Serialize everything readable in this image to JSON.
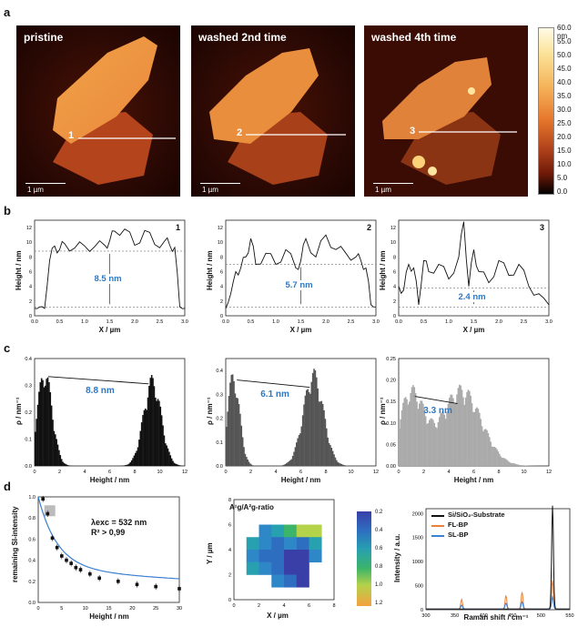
{
  "panels": {
    "a": "a",
    "b": "b",
    "c": "c",
    "d": "d"
  },
  "afm": [
    {
      "title": "pristine",
      "line_index": "1",
      "scale": "1 µm"
    },
    {
      "title": "washed 2nd time",
      "line_index": "2",
      "scale": "1 µm"
    },
    {
      "title": "washed 4th time",
      "line_index": "3",
      "scale": "1 µm"
    }
  ],
  "colorbar": {
    "ticks": [
      "60.0 nm",
      "55.0",
      "50.0",
      "45.0",
      "40.0",
      "35.0",
      "30.0",
      "25.0",
      "20.0",
      "15.0",
      "10.0",
      "5.0",
      "0.0"
    ]
  },
  "profiles": {
    "xlabel": "X / µm",
    "ylabel": "Height / nm",
    "items": [
      {
        "index": "1",
        "annotation": "8.5 nm"
      },
      {
        "index": "2",
        "annotation": "5.7 nm"
      },
      {
        "index": "3",
        "annotation": "2.4 nm"
      }
    ]
  },
  "histograms": {
    "xlabel": "Height / nm",
    "ylabel": "ρ / nm⁻¹",
    "items": [
      {
        "annotation": "8.8 nm"
      },
      {
        "annotation": "6.1 nm"
      },
      {
        "annotation": "3.3 nm"
      }
    ]
  },
  "panel_d": {
    "intensity_plot": {
      "ylabel": "remaining SI-intensity",
      "xlabel": "Height / nm",
      "lambda": "λexc = 532 nm",
      "r2": "R² > 0,99"
    },
    "map": {
      "title": "A¹g/A²g-ratio",
      "xlabel": "X / µm",
      "ylabel": "Y / µm",
      "scale_ticks": [
        "0.2",
        "0.4",
        "0.6",
        "0.8",
        "1.0",
        "1.2"
      ]
    },
    "raman": {
      "xlabel": "Raman shift / cm⁻¹",
      "ylabel": "Intensity / a.u.",
      "legend": [
        "Si/SiO₂-Substrate",
        "FL-BP",
        "SL-BP"
      ],
      "colors": [
        "#111111",
        "#e8823a",
        "#3a7fd0"
      ]
    }
  },
  "chart_data": [
    {
      "type": "line",
      "title": "",
      "xlabel": "X / µm",
      "ylabel": "Height / nm",
      "xlim": [
        0,
        3.0
      ],
      "ylim": [
        0,
        13
      ],
      "name": "profile 1",
      "x": [
        0.0,
        0.1,
        0.2,
        0.3,
        0.4,
        0.5,
        0.6,
        0.8,
        1.0,
        1.2,
        1.4,
        1.5,
        1.6,
        1.8,
        2.0,
        2.2,
        2.4,
        2.6,
        2.7,
        2.8,
        2.9,
        3.0
      ],
      "y": [
        1.0,
        1.2,
        1.0,
        7.5,
        9.5,
        9.0,
        9.8,
        9.2,
        9.5,
        9.4,
        9.6,
        10.2,
        11.5,
        11.8,
        9.6,
        11.6,
        9.7,
        10.2,
        9.6,
        9.3,
        1.2,
        1.0
      ],
      "reference_lines": [
        1.2,
        8.8
      ]
    },
    {
      "type": "line",
      "title": "",
      "xlabel": "X / µm",
      "ylabel": "Height / nm",
      "xlim": [
        0,
        3.0
      ],
      "ylim": [
        0,
        13
      ],
      "name": "profile 2",
      "x": [
        0.0,
        0.1,
        0.2,
        0.3,
        0.4,
        0.5,
        0.6,
        0.8,
        1.0,
        1.2,
        1.4,
        1.5,
        1.6,
        1.8,
        2.0,
        2.2,
        2.4,
        2.6,
        2.7,
        2.8,
        2.9,
        3.0
      ],
      "y": [
        1.0,
        3.0,
        6.0,
        6.5,
        8.0,
        10.5,
        7.0,
        8.5,
        7.0,
        9.0,
        6.5,
        7.5,
        10.5,
        8.0,
        11.0,
        9.0,
        8.5,
        8.0,
        7.5,
        6.5,
        1.5,
        1.2
      ],
      "reference_lines": [
        1.2,
        7.0
      ]
    },
    {
      "type": "line",
      "title": "",
      "xlabel": "X / µm",
      "ylabel": "Height / nm",
      "xlim": [
        0,
        3.0
      ],
      "ylim": [
        0,
        13
      ],
      "name": "profile 3",
      "x": [
        0.0,
        0.1,
        0.2,
        0.3,
        0.4,
        0.5,
        0.6,
        0.8,
        1.0,
        1.2,
        1.3,
        1.4,
        1.5,
        1.6,
        1.8,
        2.0,
        2.2,
        2.4,
        2.6,
        2.8,
        3.0
      ],
      "y": [
        4.0,
        3.5,
        7.0,
        6.5,
        1.5,
        7.5,
        6.0,
        7.0,
        5.0,
        8.0,
        12.8,
        4.0,
        9.0,
        6.0,
        4.5,
        7.5,
        5.5,
        7.0,
        4.0,
        3.0,
        1.5
      ],
      "reference_lines": [
        1.2,
        3.8
      ]
    },
    {
      "type": "bar",
      "title": "",
      "xlabel": "Height / nm",
      "ylabel": "ρ / nm⁻¹",
      "xlim": [
        0,
        12
      ],
      "ylim": [
        0,
        0.4
      ],
      "name": "histogram 1",
      "peaks": [
        {
          "center": 0.8,
          "height": 0.37,
          "width": 0.6
        },
        {
          "center": 9.4,
          "height": 0.34,
          "width": 0.7
        }
      ]
    },
    {
      "type": "bar",
      "title": "",
      "xlabel": "Height / nm",
      "ylabel": "ρ / nm⁻¹",
      "xlim": [
        0,
        12
      ],
      "ylim": [
        0,
        0.45
      ],
      "name": "histogram 2",
      "peaks": [
        {
          "center": 0.6,
          "height": 0.4,
          "width": 0.5
        },
        {
          "center": 7.0,
          "height": 0.41,
          "width": 0.8
        }
      ]
    },
    {
      "type": "bar",
      "title": "",
      "xlabel": "Height / nm",
      "ylabel": "ρ / nm⁻¹",
      "xlim": [
        0,
        12
      ],
      "ylim": [
        0,
        0.25
      ],
      "name": "histogram 3",
      "peaks": [
        {
          "center": 1.0,
          "height": 0.18,
          "width": 1.0
        },
        {
          "center": 5.0,
          "height": 0.19,
          "width": 1.6
        }
      ]
    },
    {
      "type": "scatter",
      "title": "",
      "xlabel": "Height / nm",
      "ylabel": "remaining SI-intensity",
      "xlim": [
        0,
        30
      ],
      "ylim": [
        0,
        1.0
      ],
      "name": "remaining SI-intensity",
      "x": [
        1,
        2,
        3,
        4,
        5,
        6,
        7,
        8,
        9,
        11,
        13,
        17,
        21,
        25,
        30
      ],
      "y": [
        0.98,
        0.84,
        0.61,
        0.52,
        0.44,
        0.4,
        0.37,
        0.33,
        0.31,
        0.27,
        0.23,
        0.2,
        0.17,
        0.15,
        0.13
      ]
    },
    {
      "type": "heatmap",
      "title": "A¹g/A²g-ratio",
      "xlabel": "X / µm",
      "ylabel": "Y / µm",
      "xlim": [
        0,
        8
      ],
      "ylim": [
        0,
        8
      ],
      "zlim": [
        0.2,
        1.2
      ]
    },
    {
      "type": "line",
      "title": "",
      "xlabel": "Raman shift / cm⁻¹",
      "ylabel": "Intensity / a.u.",
      "xlim": [
        300,
        550
      ],
      "ylim": [
        0,
        2100
      ],
      "series": [
        {
          "name": "Si/SiO₂-Substrate",
          "peaks": [
            [
              520,
              2150
            ]
          ]
        },
        {
          "name": "FL-BP",
          "peaks": [
            [
              362,
              200
            ],
            [
              439,
              280
            ],
            [
              467,
              350
            ],
            [
              520,
              600
            ]
          ]
        },
        {
          "name": "SL-BP",
          "peaks": [
            [
              362,
              80
            ],
            [
              439,
              120
            ],
            [
              467,
              150
            ],
            [
              520,
              250
            ]
          ]
        }
      ]
    }
  ]
}
